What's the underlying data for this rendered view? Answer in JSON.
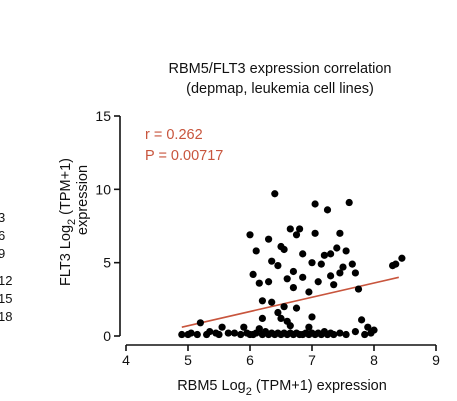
{
  "left_fragment": [
    "3",
    "6",
    "9",
    "12",
    "15",
    "18"
  ],
  "chart_data": {
    "type": "scatter",
    "title": "RBM5/FLT3 expression correlation",
    "subtitle": "(depmap, leukemia cell lines)",
    "xlabel_parts": [
      "RBM5 Log",
      "2",
      " (TPM+1) expression"
    ],
    "ylabel_parts": [
      "FLT3 Log",
      "2",
      " (TPM+1)",
      "expression"
    ],
    "xlim": [
      4,
      9
    ],
    "ylim": [
      0,
      15
    ],
    "xticks": [
      4,
      5,
      6,
      7,
      8,
      9
    ],
    "yticks": [
      0,
      5,
      10,
      15
    ],
    "stats": [
      "r = 0.262",
      "P = 0.00717"
    ],
    "stats_color": "#c8553d",
    "point_color": "#000000",
    "trend_color": "#c8553d",
    "trendline": {
      "x": [
        4.9,
        8.4
      ],
      "y": [
        0.6,
        4.0
      ]
    },
    "points": [
      [
        4.9,
        0.1
      ],
      [
        5.0,
        0.1
      ],
      [
        5.05,
        0.2
      ],
      [
        5.15,
        0.1
      ],
      [
        5.2,
        0.9
      ],
      [
        5.3,
        0.1
      ],
      [
        5.35,
        0.3
      ],
      [
        5.45,
        0.2
      ],
      [
        5.5,
        0.1
      ],
      [
        5.55,
        0.6
      ],
      [
        5.65,
        0.2
      ],
      [
        5.75,
        0.2
      ],
      [
        5.85,
        0.1
      ],
      [
        5.9,
        0.6
      ],
      [
        5.95,
        0.2
      ],
      [
        6.0,
        0.1
      ],
      [
        6.05,
        0.1
      ],
      [
        6.1,
        0.2
      ],
      [
        6.15,
        0.5
      ],
      [
        6.2,
        0.1
      ],
      [
        6.25,
        0.3
      ],
      [
        6.3,
        0.1
      ],
      [
        6.35,
        0.2
      ],
      [
        6.4,
        0.1
      ],
      [
        6.45,
        0.2
      ],
      [
        6.5,
        0.1
      ],
      [
        6.55,
        0.2
      ],
      [
        6.6,
        0.1
      ],
      [
        6.65,
        0.2
      ],
      [
        6.7,
        0.1
      ],
      [
        6.75,
        0.2
      ],
      [
        6.8,
        0.1
      ],
      [
        6.85,
        0.1
      ],
      [
        6.9,
        0.2
      ],
      [
        6.95,
        0.1
      ],
      [
        7.0,
        0.2
      ],
      [
        7.05,
        0.1
      ],
      [
        7.1,
        0.2
      ],
      [
        7.15,
        0.1
      ],
      [
        7.2,
        0.3
      ],
      [
        7.25,
        0.1
      ],
      [
        7.3,
        0.2
      ],
      [
        7.35,
        0.1
      ],
      [
        7.45,
        0.2
      ],
      [
        7.55,
        0.1
      ],
      [
        7.7,
        0.3
      ],
      [
        7.85,
        0.1
      ],
      [
        7.95,
        0.2
      ],
      [
        6.0,
        6.9
      ],
      [
        6.05,
        4.2
      ],
      [
        6.1,
        5.8
      ],
      [
        6.15,
        3.6
      ],
      [
        6.2,
        2.4
      ],
      [
        6.2,
        1.2
      ],
      [
        6.3,
        3.7
      ],
      [
        6.3,
        6.6
      ],
      [
        6.35,
        5.1
      ],
      [
        6.35,
        2.3
      ],
      [
        6.4,
        9.7
      ],
      [
        6.45,
        1.6
      ],
      [
        6.45,
        4.8
      ],
      [
        6.5,
        1.2
      ],
      [
        6.5,
        6.1
      ],
      [
        6.55,
        5.9
      ],
      [
        6.55,
        2.0
      ],
      [
        6.6,
        3.9
      ],
      [
        6.6,
        1.0
      ],
      [
        6.65,
        7.3
      ],
      [
        6.65,
        0.7
      ],
      [
        6.7,
        4.4
      ],
      [
        6.7,
        3.3
      ],
      [
        6.75,
        6.9
      ],
      [
        6.75,
        1.9
      ],
      [
        6.8,
        7.3
      ],
      [
        6.85,
        5.6
      ],
      [
        6.85,
        4.0
      ],
      [
        6.95,
        3.0
      ],
      [
        6.95,
        0.6
      ],
      [
        7.0,
        5.0
      ],
      [
        7.0,
        1.3
      ],
      [
        7.05,
        7.0
      ],
      [
        7.05,
        9.0
      ],
      [
        7.1,
        3.7
      ],
      [
        7.15,
        4.9
      ],
      [
        7.2,
        5.5
      ],
      [
        7.25,
        8.6
      ],
      [
        7.3,
        4.1
      ],
      [
        7.3,
        5.6
      ],
      [
        7.35,
        3.5
      ],
      [
        7.4,
        6.0
      ],
      [
        7.45,
        4.3
      ],
      [
        7.45,
        7.0
      ],
      [
        7.5,
        4.7
      ],
      [
        7.55,
        5.8
      ],
      [
        7.6,
        9.1
      ],
      [
        7.65,
        4.9
      ],
      [
        7.7,
        4.3
      ],
      [
        7.75,
        3.2
      ],
      [
        7.8,
        1.1
      ],
      [
        7.9,
        0.6
      ],
      [
        8.0,
        0.4
      ],
      [
        8.3,
        4.8
      ],
      [
        8.35,
        4.9
      ],
      [
        8.45,
        5.3
      ]
    ]
  }
}
